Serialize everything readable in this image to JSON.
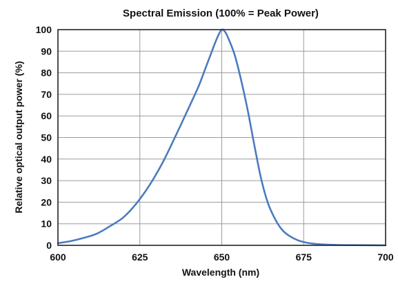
{
  "chart_data": {
    "type": "line",
    "title": "Spectral Emission (100% = Peak Power)",
    "xlabel": "Wavelength (nm)",
    "ylabel": "Relative optical output power (%)",
    "xlim": [
      600,
      700
    ],
    "ylim": [
      0,
      100
    ],
    "xticks": [
      600,
      625,
      650,
      675,
      700
    ],
    "yticks": [
      0,
      10,
      20,
      30,
      40,
      50,
      60,
      70,
      80,
      90,
      100
    ],
    "grid": true,
    "line_color": "#4a7bbf",
    "series": [
      {
        "x": [
          600,
          604,
          608,
          612,
          616,
          620,
          624,
          628,
          632,
          636,
          640,
          643,
          645,
          647,
          648,
          649,
          650,
          651,
          652,
          654,
          656,
          658,
          660,
          662,
          664,
          666,
          668,
          670,
          673,
          676,
          680,
          685,
          690,
          700
        ],
        "y": [
          1,
          2,
          3.5,
          5.5,
          9,
          13,
          19.5,
          28,
          38.5,
          51,
          64,
          74,
          82,
          90,
          94,
          97.5,
          100,
          99,
          96,
          88,
          76,
          62,
          46,
          31,
          20,
          13,
          8,
          5,
          2.5,
          1.2,
          0.5,
          0.2,
          0.1,
          0
        ]
      }
    ]
  }
}
